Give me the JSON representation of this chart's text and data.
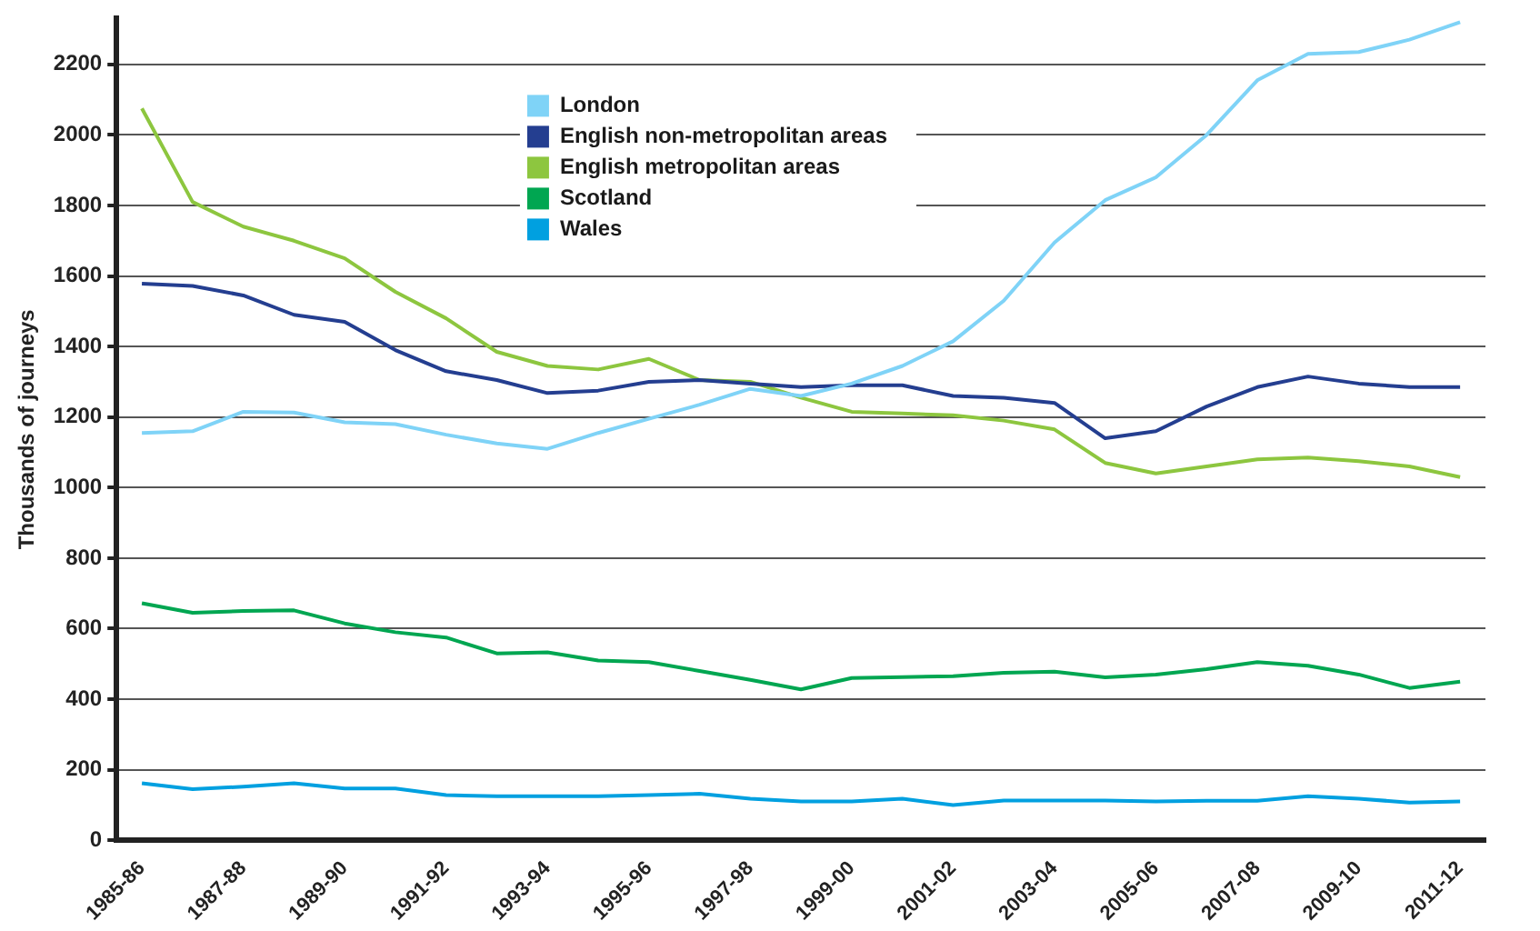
{
  "chart_data": {
    "type": "line",
    "ylabel": "Thousands of journeys",
    "categories": [
      "1985-86",
      null,
      "1987-88",
      null,
      "1989-90",
      null,
      "1991-92",
      null,
      "1993-94",
      null,
      "1995-96",
      null,
      "1997-98",
      null,
      "1999-00",
      null,
      "2001-02",
      null,
      "2003-04",
      null,
      "2005-06",
      null,
      "2007-08",
      null,
      "2009-10",
      null,
      "2011-12"
    ],
    "series": [
      {
        "name": "London",
        "color": "#7fd3f7",
        "values": [
          1155,
          1160,
          1215,
          1213,
          1185,
          1180,
          1150,
          1125,
          1110,
          1155,
          1195,
          1235,
          1280,
          1260,
          1295,
          1345,
          1415,
          1530,
          1695,
          1815,
          1880,
          2000,
          2155,
          2230,
          2235,
          2270,
          2320
        ]
      },
      {
        "name": "English non-metropolitan areas",
        "color": "#243e90",
        "values": [
          1578,
          1572,
          1545,
          1490,
          1470,
          1390,
          1330,
          1305,
          1268,
          1275,
          1300,
          1305,
          1295,
          1285,
          1290,
          1290,
          1260,
          1255,
          1240,
          1140,
          1160,
          1230,
          1285,
          1315,
          1295,
          1285,
          1285
        ]
      },
      {
        "name": "English metropolitan areas",
        "color": "#8dc63f",
        "values": [
          2075,
          1810,
          1740,
          1700,
          1650,
          1555,
          1480,
          1385,
          1345,
          1335,
          1365,
          1305,
          1300,
          1255,
          1215,
          1210,
          1205,
          1190,
          1165,
          1070,
          1040,
          1060,
          1080,
          1085,
          1075,
          1060,
          1030
        ]
      },
      {
        "name": "Scotland",
        "color": "#00a651",
        "values": [
          672,
          645,
          650,
          652,
          615,
          590,
          575,
          530,
          533,
          510,
          505,
          480,
          455,
          428,
          460,
          463,
          465,
          475,
          478,
          462,
          470,
          485,
          505,
          495,
          470,
          432,
          450
        ]
      },
      {
        "name": "Wales",
        "color": "#00a0e0",
        "values": [
          162,
          145,
          152,
          162,
          147,
          147,
          128,
          125,
          125,
          125,
          128,
          132,
          118,
          110,
          110,
          118,
          100,
          113,
          113,
          113,
          110,
          112,
          112,
          125,
          118,
          107,
          110
        ]
      }
    ],
    "ylim": [
      0,
      2330
    ],
    "yticks": [
      0,
      200,
      400,
      600,
      800,
      1000,
      1200,
      1400,
      1600,
      1800,
      2000,
      2200
    ],
    "grid": "y",
    "legend": "top",
    "marker": "none",
    "line_style": "solid"
  }
}
